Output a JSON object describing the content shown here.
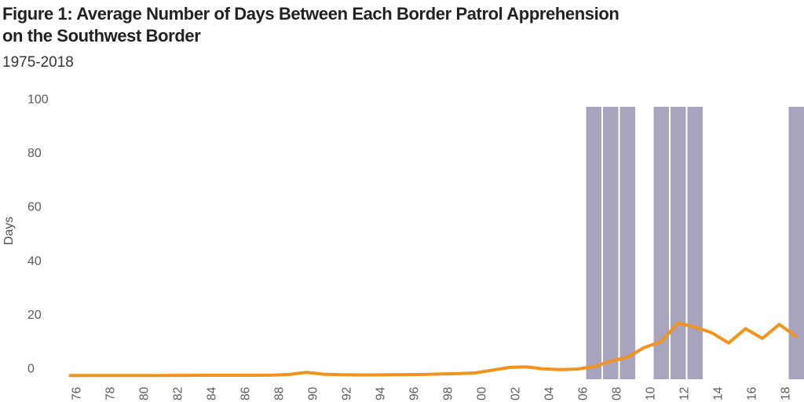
{
  "figure": {
    "title_lines": [
      "Figure 1: Average Number of Days Between Each Border Patrol Apprehension",
      "on the Southwest Border"
    ],
    "subtitle": "1975-2018"
  },
  "chart_data": {
    "type": "line",
    "title": "Figure 1: Average Number of Days Between Each Border Patrol Apprehension on the Southwest Border",
    "subtitle": "1975-2018",
    "xlabel": "",
    "ylabel": "Days",
    "ylim": [
      0,
      100
    ],
    "yticks": [
      0,
      20,
      40,
      60,
      80,
      100
    ],
    "grid": false,
    "legend": "none",
    "x": [
      1975,
      1976,
      1977,
      1978,
      1979,
      1980,
      1981,
      1982,
      1983,
      1984,
      1985,
      1986,
      1987,
      1988,
      1989,
      1990,
      1991,
      1992,
      1993,
      1994,
      1995,
      1996,
      1997,
      1998,
      1999,
      2000,
      2001,
      2002,
      2003,
      2004,
      2005,
      2006,
      2007,
      2008,
      2009,
      2010,
      2011,
      2012,
      2013,
      2014,
      2015,
      2016,
      2017,
      2018
    ],
    "series": [
      {
        "name": "Average days between each apprehension",
        "values": [
          0.2,
          0.2,
          0.2,
          0.2,
          0.2,
          0.2,
          0.25,
          0.25,
          0.3,
          0.3,
          0.3,
          0.3,
          0.35,
          0.6,
          1.4,
          0.7,
          0.5,
          0.45,
          0.45,
          0.5,
          0.55,
          0.6,
          0.8,
          0.9,
          1.2,
          2.2,
          3.2,
          3.4,
          2.7,
          2.4,
          2.6,
          3.5,
          5.5,
          7.0,
          10.6,
          12.8,
          19.7,
          18.2,
          16.1,
          12.3,
          17.6,
          14.0,
          19.2,
          14.7
        ]
      }
    ],
    "highlight_band_years": [
      2006,
      2007,
      2008,
      2010,
      2011,
      2012,
      2018
    ],
    "xticks": [
      1976,
      1978,
      1980,
      1982,
      1984,
      1986,
      1988,
      1990,
      1992,
      1994,
      1996,
      1998,
      2000,
      2002,
      2004,
      2006,
      2008,
      2010,
      2012,
      2014,
      2016,
      2018
    ],
    "xtick_labels": [
      "76",
      "78",
      "80",
      "82",
      "84",
      "86",
      "88",
      "90",
      "92",
      "94",
      "96",
      "98",
      "00",
      "02",
      "04",
      "06",
      "08",
      "10",
      "12",
      "14",
      "16",
      "18"
    ],
    "colors": {
      "line": "#EF941C",
      "band": "#A8A4BE",
      "tick_text": "#5A5B5E",
      "title_text": "#222223"
    }
  }
}
